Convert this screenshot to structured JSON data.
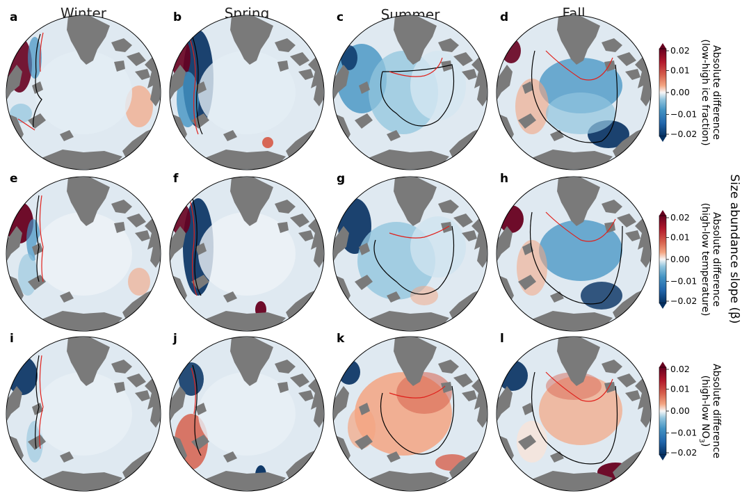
{
  "seasons": [
    "Winter",
    "Spring",
    "Summer",
    "Fall"
  ],
  "panels": [
    {
      "letter": "a",
      "row": 0,
      "col": 0
    },
    {
      "letter": "b",
      "row": 0,
      "col": 1
    },
    {
      "letter": "c",
      "row": 0,
      "col": 2
    },
    {
      "letter": "d",
      "row": 0,
      "col": 3
    },
    {
      "letter": "e",
      "row": 1,
      "col": 0
    },
    {
      "letter": "f",
      "row": 1,
      "col": 1
    },
    {
      "letter": "g",
      "row": 1,
      "col": 2
    },
    {
      "letter": "h",
      "row": 1,
      "col": 3
    },
    {
      "letter": "i",
      "row": 2,
      "col": 0
    },
    {
      "letter": "j",
      "row": 2,
      "col": 1
    },
    {
      "letter": "k",
      "row": 2,
      "col": 2
    },
    {
      "letter": "l",
      "row": 2,
      "col": 3
    }
  ],
  "colorbars": [
    {
      "label_line1": "Absolute difference",
      "label_line2": "(low-high ice fraction)"
    },
    {
      "label_line1": "Absolute difference",
      "label_line2": "(high-low temperature)"
    },
    {
      "label_line1": "Absolute difference",
      "label_line2": "(high-low NO"
    }
  ],
  "colorbar_ticks": [
    "0.02",
    "0.01",
    "0.00",
    "−0.01",
    "−0.02"
  ],
  "side_title": "Size abundance slope (β)",
  "no3_subscript": "3",
  "colors": {
    "land": "#7a7a7a",
    "deep_red": "#67001f",
    "red": "#d6604d",
    "light_red": "#f4a582",
    "white": "#f7f7f7",
    "light_blue": "#92c5de",
    "blue": "#4393c3",
    "deep_blue": "#053061",
    "line_red": "#e0201b",
    "line_black": "#000000"
  }
}
